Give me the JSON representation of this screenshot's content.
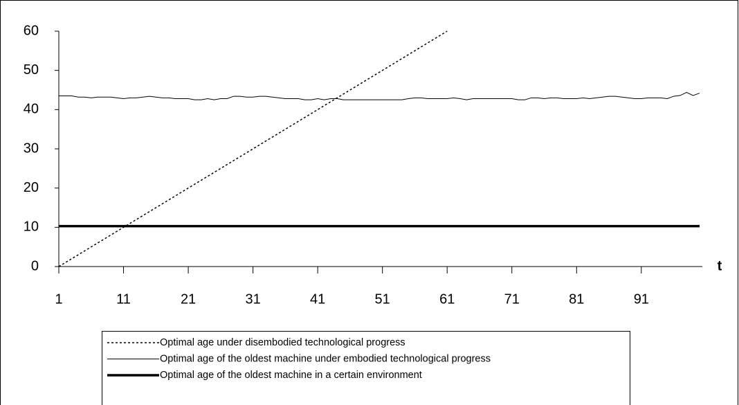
{
  "chart_data": {
    "type": "line",
    "x_label": "t",
    "x": [
      1,
      2,
      3,
      4,
      5,
      6,
      7,
      8,
      9,
      10,
      11,
      12,
      13,
      14,
      15,
      16,
      17,
      18,
      19,
      20,
      21,
      22,
      23,
      24,
      25,
      26,
      27,
      28,
      29,
      30,
      31,
      32,
      33,
      34,
      35,
      36,
      37,
      38,
      39,
      40,
      41,
      42,
      43,
      44,
      45,
      46,
      47,
      48,
      49,
      50,
      51,
      52,
      53,
      54,
      55,
      56,
      57,
      58,
      59,
      60,
      61,
      62,
      63,
      64,
      65,
      66,
      67,
      68,
      69,
      70,
      71,
      72,
      73,
      74,
      75,
      76,
      77,
      78,
      79,
      80,
      81,
      82,
      83,
      84,
      85,
      86,
      87,
      88,
      89,
      90,
      91,
      92,
      93,
      94,
      95,
      96,
      97,
      98,
      99,
      100
    ],
    "xlim": [
      1,
      100
    ],
    "xticks": [
      1,
      11,
      21,
      31,
      41,
      51,
      61,
      71,
      81,
      91
    ],
    "ylim": [
      0,
      60
    ],
    "yticks": [
      0,
      10,
      20,
      30,
      40,
      50,
      60
    ],
    "series": [
      {
        "name": "Optimal age under disembodied technological progress",
        "color": "#000000",
        "dash": "dotted",
        "width": 1.5,
        "values": [
          0,
          1,
          2,
          3,
          4,
          5,
          6,
          7,
          8,
          9,
          10,
          11,
          12,
          13,
          14,
          15,
          16,
          17,
          18,
          19,
          20,
          21,
          22,
          23,
          24,
          25,
          26,
          27,
          28,
          29,
          30,
          31,
          32,
          33,
          34,
          35,
          36,
          37,
          38,
          39,
          40,
          41,
          42,
          43,
          44,
          45,
          46,
          47,
          48,
          49,
          50,
          51,
          52,
          53,
          54,
          55,
          56,
          57,
          58,
          59,
          60,
          null,
          null,
          null,
          null,
          null,
          null,
          null,
          null,
          null,
          null,
          null,
          null,
          null,
          null,
          null,
          null,
          null,
          null,
          null,
          null,
          null,
          null,
          null,
          null,
          null,
          null,
          null,
          null,
          null,
          null,
          null,
          null,
          null,
          null,
          null,
          null,
          null,
          null,
          null
        ]
      },
      {
        "name": "Optimal age of the oldest machine under embodied technological progress",
        "color": "#000000",
        "dash": "solid",
        "width": 1,
        "values": [
          43.5,
          43.5,
          43.5,
          43.2,
          43.2,
          43,
          43.2,
          43.2,
          43.2,
          43,
          42.8,
          43,
          43,
          43.2,
          43.4,
          43.2,
          43,
          43,
          42.8,
          42.8,
          42.8,
          42.5,
          42.5,
          42.8,
          42.5,
          42.8,
          42.8,
          43.4,
          43.4,
          43.2,
          43.2,
          43.4,
          43.4,
          43.2,
          43,
          42.8,
          42.8,
          42.8,
          42.5,
          42.5,
          42.8,
          42.5,
          42.8,
          42.8,
          42.5,
          42.5,
          42.5,
          42.5,
          42.5,
          42.5,
          42.5,
          42.5,
          42.5,
          42.5,
          42.8,
          43,
          43,
          42.8,
          42.8,
          42.8,
          42.8,
          43,
          42.8,
          42.5,
          42.8,
          42.8,
          42.8,
          42.8,
          42.8,
          42.8,
          42.8,
          42.5,
          42.5,
          43,
          43,
          42.8,
          43,
          43,
          42.8,
          42.8,
          42.8,
          43,
          42.8,
          43,
          43.2,
          43.4,
          43.4,
          43.2,
          43,
          42.8,
          42.8,
          43,
          43,
          43,
          42.8,
          43.4,
          43.6,
          44.4,
          43.6,
          44.2
        ]
      },
      {
        "name": "Optimal age of the oldest machine in a certain environment",
        "color": "#000000",
        "dash": "solid",
        "width": 3.5,
        "values": [
          10.3,
          10.3,
          10.3,
          10.3,
          10.3,
          10.3,
          10.3,
          10.3,
          10.3,
          10.3,
          10.3,
          10.3,
          10.3,
          10.3,
          10.3,
          10.3,
          10.3,
          10.3,
          10.3,
          10.3,
          10.3,
          10.3,
          10.3,
          10.3,
          10.3,
          10.3,
          10.3,
          10.3,
          10.3,
          10.3,
          10.3,
          10.3,
          10.3,
          10.3,
          10.3,
          10.3,
          10.3,
          10.3,
          10.3,
          10.3,
          10.3,
          10.3,
          10.3,
          10.3,
          10.3,
          10.3,
          10.3,
          10.3,
          10.3,
          10.3,
          10.3,
          10.3,
          10.3,
          10.3,
          10.3,
          10.3,
          10.3,
          10.3,
          10.3,
          10.3,
          10.3,
          10.3,
          10.3,
          10.3,
          10.3,
          10.3,
          10.3,
          10.3,
          10.3,
          10.3,
          10.3,
          10.3,
          10.3,
          10.3,
          10.3,
          10.3,
          10.3,
          10.3,
          10.3,
          10.3,
          10.3,
          10.3,
          10.3,
          10.3,
          10.3,
          10.3,
          10.3,
          10.3,
          10.3,
          10.3,
          10.3,
          10.3,
          10.3,
          10.3,
          10.3,
          10.3,
          10.3,
          10.3,
          10.3,
          10.3
        ]
      }
    ]
  }
}
